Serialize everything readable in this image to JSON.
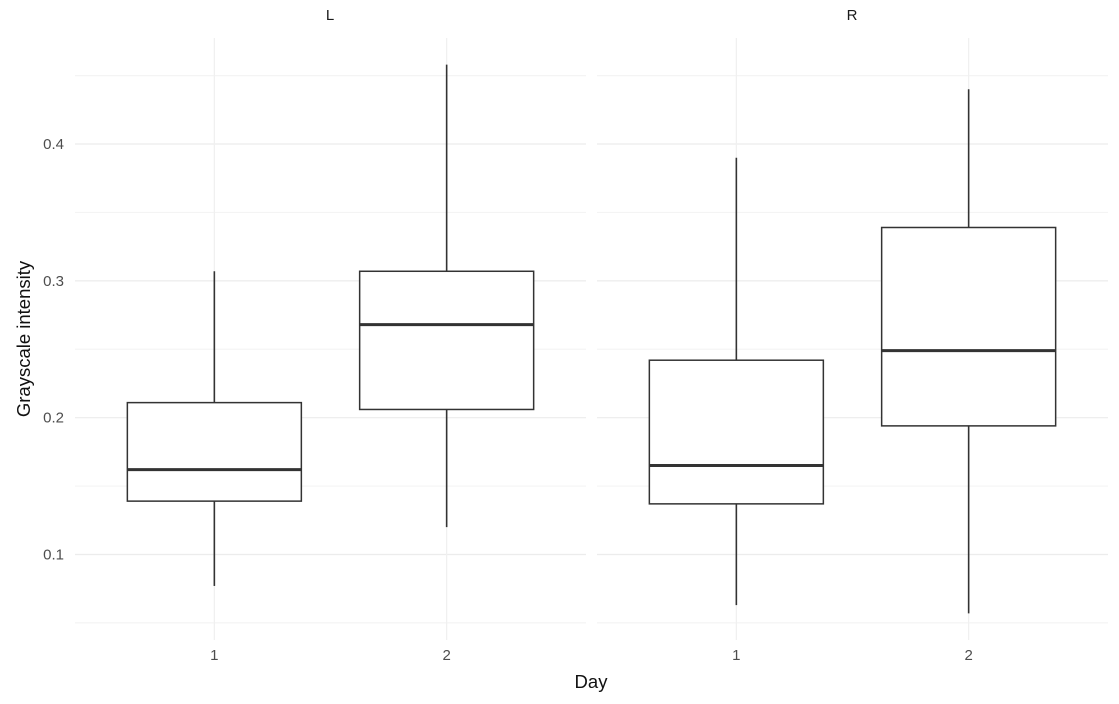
{
  "figure": {
    "y_axis_title": "Grayscale intensity",
    "x_axis_title": "Day"
  },
  "chart_data": {
    "type": "boxplot",
    "title": "",
    "xlabel": "Day",
    "ylabel": "Grayscale intensity",
    "categories": [
      "1",
      "2"
    ],
    "facets": [
      {
        "label": "L",
        "boxes": [
          {
            "category": "1",
            "whisker_low": 0.077,
            "q1": 0.139,
            "median": 0.162,
            "q3": 0.211,
            "whisker_high": 0.307
          },
          {
            "category": "2",
            "whisker_low": 0.12,
            "q1": 0.206,
            "median": 0.268,
            "q3": 0.307,
            "whisker_high": 0.458
          }
        ]
      },
      {
        "label": "R",
        "boxes": [
          {
            "category": "1",
            "whisker_low": 0.063,
            "q1": 0.137,
            "median": 0.165,
            "q3": 0.242,
            "whisker_high": 0.39
          },
          {
            "category": "2",
            "whisker_low": 0.057,
            "q1": 0.194,
            "median": 0.249,
            "q3": 0.339,
            "whisker_high": 0.44
          }
        ]
      }
    ],
    "y_ticks": [
      {
        "value": 0.1,
        "label": "0.1"
      },
      {
        "value": 0.2,
        "label": "0.2"
      },
      {
        "value": 0.3,
        "label": "0.3"
      },
      {
        "value": 0.4,
        "label": "0.4"
      }
    ],
    "y_minor_ticks": [
      0.05,
      0.15,
      0.25,
      0.35,
      0.45
    ],
    "ylim": [
      0.0375,
      0.4775
    ],
    "grid": true,
    "legend": "none",
    "colors": {
      "box_stroke": "#333333",
      "box_fill": "#ffffff",
      "grid_major": "#ececec",
      "grid_minor": "#f4f4f4",
      "grid_vertical": "#f0f0f0",
      "tick_label": "#4d4d4d",
      "axis_title": "#111111",
      "strip_label": "#1a1a1a",
      "background": "#ffffff"
    }
  }
}
